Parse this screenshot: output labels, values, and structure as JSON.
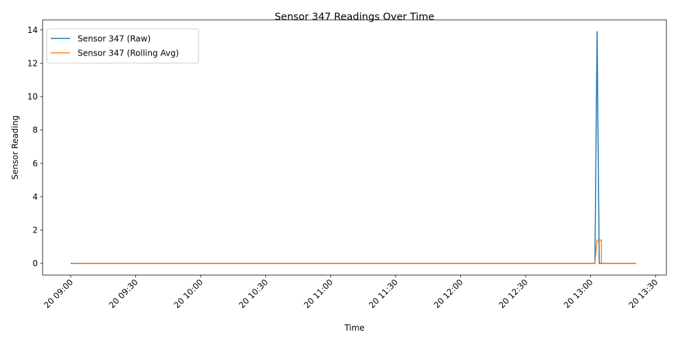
{
  "chart_data": {
    "type": "line",
    "title": "Sensor 347 Readings Over Time",
    "xlabel": "Time",
    "ylabel": "Sensor Reading",
    "x_range": [
      "20 08:47",
      "20 13:35"
    ],
    "ylim": [
      -0.7,
      14.6
    ],
    "x_ticks": [
      "20 09:00",
      "20 09:30",
      "20 10:00",
      "20 10:30",
      "20 11:00",
      "20 11:30",
      "20 12:00",
      "20 12:30",
      "20 13:00",
      "20 13:30"
    ],
    "y_ticks": [
      0,
      2,
      4,
      6,
      8,
      10,
      12,
      14
    ],
    "grid": false,
    "legend_position": "top-left",
    "series": [
      {
        "name": "Sensor 347 (Raw)",
        "color": "#1f77b4",
        "points": [
          [
            "20 09:00",
            0
          ],
          [
            "20 13:02",
            0
          ],
          [
            "20 13:03",
            13.9
          ],
          [
            "20 13:04",
            0
          ],
          [
            "20 13:21",
            0
          ]
        ]
      },
      {
        "name": "Sensor 347 (Rolling Avg)",
        "color": "#ff7f0e",
        "points": [
          [
            "20 09:01",
            0
          ],
          [
            "20 13:02",
            0
          ],
          [
            "20 13:03",
            1.4
          ],
          [
            "20 13:04",
            1.4
          ],
          [
            "20 13:05",
            1.4
          ],
          [
            "20 13:05",
            0
          ],
          [
            "20 13:21",
            0
          ]
        ]
      }
    ]
  }
}
